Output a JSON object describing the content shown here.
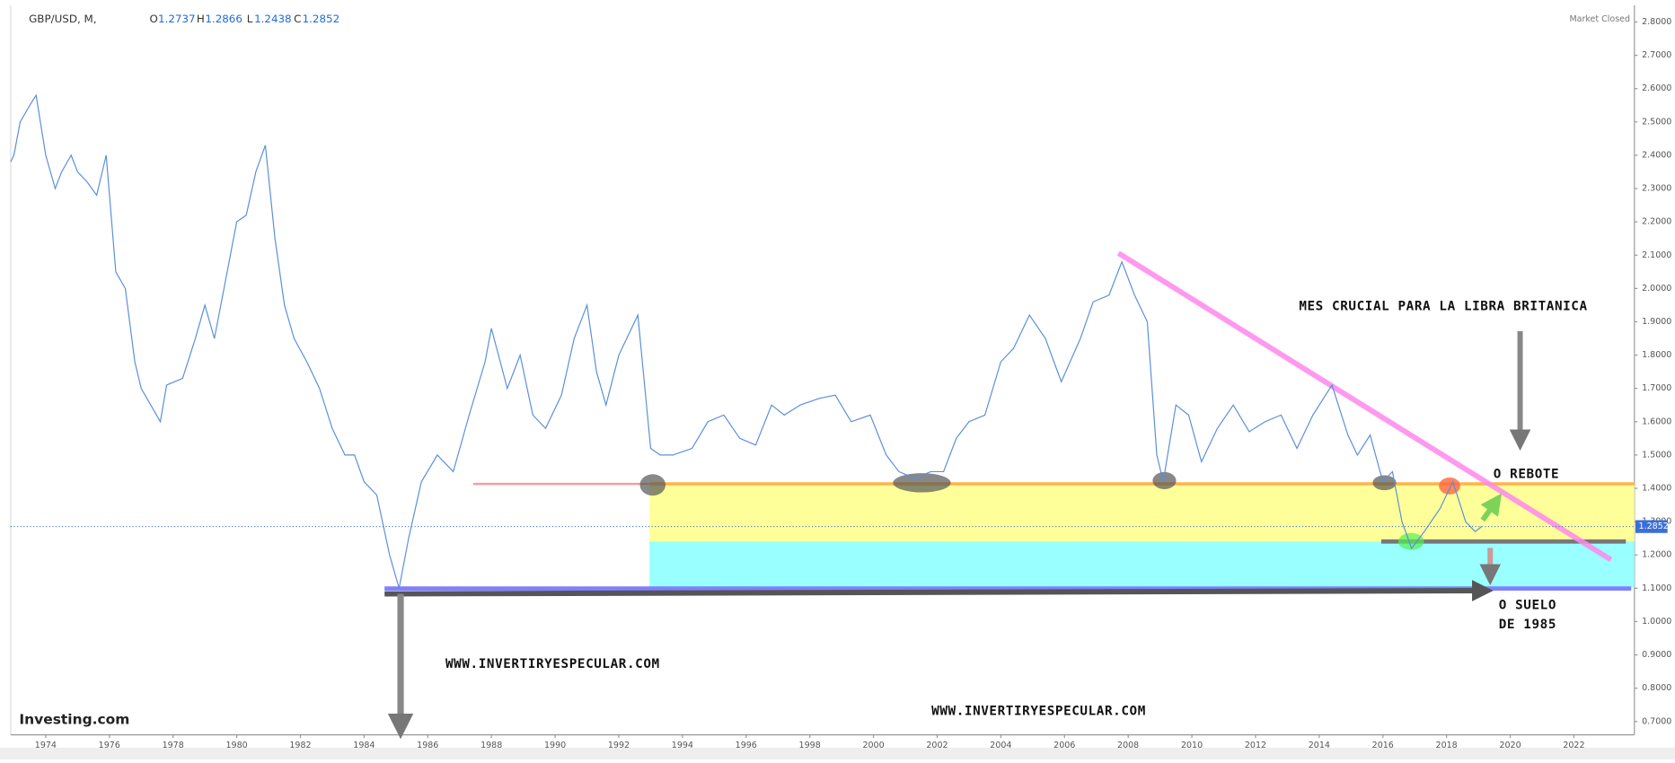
{
  "header": {
    "symbol": "GBP/USD, M,",
    "o_label": "O",
    "o": 1.2737,
    "h_label": "H",
    "h": 1.2866,
    "l_label": "L",
    "l": 1.2438,
    "c_label": "C",
    "c": 1.2852,
    "status": "Market Closed",
    "logo": "Investing.com"
  },
  "chart_data": {
    "type": "line",
    "color": "#5b8fd9",
    "grid": false,
    "x": [
      1972.9,
      1973.0,
      1973.2,
      1973.5,
      1973.7,
      1974.0,
      1974.3,
      1974.5,
      1974.8,
      1975.0,
      1975.3,
      1975.6,
      1975.9,
      1976.2,
      1976.5,
      1976.8,
      1977.0,
      1977.3,
      1977.6,
      1977.8,
      1978.3,
      1978.7,
      1979.0,
      1979.3,
      1979.6,
      1980.0,
      1980.3,
      1980.6,
      1980.9,
      1981.2,
      1981.5,
      1981.8,
      1982.2,
      1982.6,
      1983.0,
      1983.4,
      1983.7,
      1984.0,
      1984.4,
      1984.8,
      1985.1,
      1985.4,
      1985.8,
      1986.3,
      1986.8,
      1987.3,
      1987.8,
      1988.0,
      1988.5,
      1988.9,
      1989.3,
      1989.7,
      1990.2,
      1990.6,
      1991.0,
      1991.3,
      1991.6,
      1992.0,
      1992.6,
      1993.0,
      1993.3,
      1993.7,
      1994.3,
      1994.8,
      1995.3,
      1995.8,
      1996.3,
      1996.8,
      1997.2,
      1997.7,
      1998.3,
      1998.8,
      1999.3,
      1999.9,
      2000.4,
      2000.8,
      2001.3,
      2001.8,
      2002.2,
      2002.6,
      2003.0,
      2003.5,
      2004.0,
      2004.4,
      2004.9,
      2005.4,
      2005.9,
      2006.5,
      2006.9,
      2007.4,
      2007.8,
      2008.2,
      2008.6,
      2008.9,
      2009.1,
      2009.5,
      2009.9,
      2010.3,
      2010.8,
      2011.3,
      2011.8,
      2012.3,
      2012.8,
      2013.3,
      2013.8,
      2014.4,
      2014.9,
      2015.2,
      2015.6,
      2016.0,
      2016.3,
      2016.6,
      2016.9,
      2017.3,
      2017.8,
      2018.2,
      2018.6,
      2018.9,
      2019.1
    ],
    "values": [
      2.38,
      2.4,
      2.5,
      2.55,
      2.58,
      2.4,
      2.3,
      2.35,
      2.4,
      2.35,
      2.32,
      2.28,
      2.4,
      2.05,
      2.0,
      1.78,
      1.7,
      1.65,
      1.6,
      1.71,
      1.73,
      1.85,
      1.95,
      1.85,
      2.0,
      2.2,
      2.22,
      2.35,
      2.43,
      2.15,
      1.95,
      1.85,
      1.78,
      1.7,
      1.58,
      1.5,
      1.5,
      1.42,
      1.38,
      1.2,
      1.1,
      1.25,
      1.42,
      1.5,
      1.45,
      1.62,
      1.78,
      1.88,
      1.7,
      1.8,
      1.62,
      1.58,
      1.68,
      1.85,
      1.95,
      1.75,
      1.65,
      1.8,
      1.92,
      1.52,
      1.5,
      1.5,
      1.52,
      1.6,
      1.62,
      1.55,
      1.53,
      1.65,
      1.62,
      1.65,
      1.67,
      1.68,
      1.6,
      1.62,
      1.5,
      1.45,
      1.43,
      1.45,
      1.45,
      1.55,
      1.6,
      1.62,
      1.78,
      1.82,
      1.92,
      1.85,
      1.72,
      1.85,
      1.96,
      1.98,
      2.08,
      1.98,
      1.9,
      1.5,
      1.42,
      1.65,
      1.62,
      1.48,
      1.58,
      1.65,
      1.57,
      1.6,
      1.62,
      1.52,
      1.62,
      1.71,
      1.56,
      1.5,
      1.56,
      1.42,
      1.45,
      1.3,
      1.22,
      1.27,
      1.34,
      1.42,
      1.3,
      1.27,
      1.2852
    ],
    "last_value": 1.2852,
    "xlim": [
      1972.9,
      2023.9
    ],
    "ylim": [
      0.66,
      2.85
    ],
    "xticks": [
      1974,
      1976,
      1978,
      1980,
      1982,
      1984,
      1986,
      1988,
      1990,
      1992,
      1994,
      1996,
      1998,
      2000,
      2002,
      2004,
      2006,
      2008,
      2010,
      2012,
      2014,
      2016,
      2018,
      2020,
      2022
    ],
    "yticks": [
      {
        "value": 0.7,
        "label": "0.7000"
      },
      {
        "value": 0.8,
        "label": "0.8000"
      },
      {
        "value": 0.9,
        "label": "0.9000"
      },
      {
        "value": 1.0,
        "label": "1.0000"
      },
      {
        "value": 1.1,
        "label": "1.1000"
      },
      {
        "value": 1.2,
        "label": "1.2000"
      },
      {
        "value": 1.3,
        "label": "1.3000"
      },
      {
        "value": 1.4,
        "label": "1.4000"
      },
      {
        "value": 1.5,
        "label": "1.5000"
      },
      {
        "value": 1.6,
        "label": "1.6000"
      },
      {
        "value": 1.7,
        "label": "1.7000"
      },
      {
        "value": 1.8,
        "label": "1.8000"
      },
      {
        "value": 1.9,
        "label": "1.9000"
      },
      {
        "value": 2.0,
        "label": "2.0000"
      },
      {
        "value": 2.1,
        "label": "2.1000"
      },
      {
        "value": 2.2,
        "label": "2.2000"
      },
      {
        "value": 2.3,
        "label": "2.3000"
      },
      {
        "value": 2.4,
        "label": "2.4000"
      },
      {
        "value": 2.5,
        "label": "2.5000"
      },
      {
        "value": 2.6,
        "label": "2.6000"
      },
      {
        "value": 2.7,
        "label": "2.7000"
      },
      {
        "value": 2.8,
        "label": "2.8000"
      }
    ],
    "annotations": [
      "MES CRUCIAL PARA LA LIBRA BRITANICA",
      "O REBOTE",
      "O SUELO",
      "DE 1985",
      "WWW.INVERTIRYESPECULAR.COM",
      "WWW.INVERTIRYESPECULAR.COM"
    ]
  }
}
